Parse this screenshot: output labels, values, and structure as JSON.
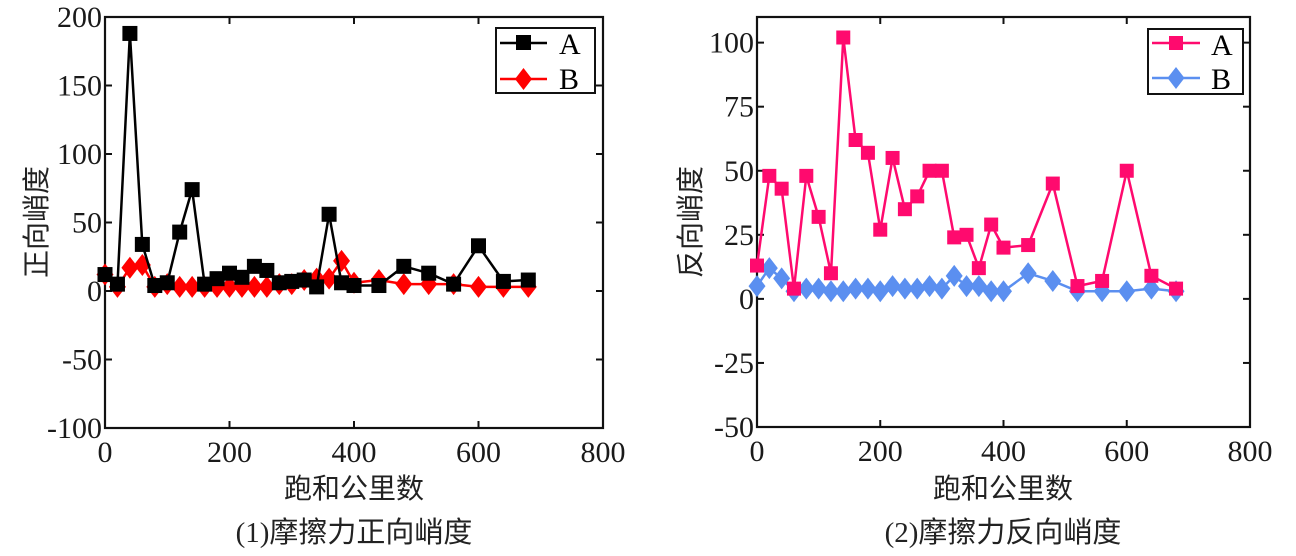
{
  "chart_data": [
    {
      "type": "line",
      "caption": "(1)摩擦力正向峭度",
      "xlabel": "跑和公里数",
      "ylabel": "正向峭度",
      "xlim": [
        0,
        800
      ],
      "ylim": [
        -100,
        200
      ],
      "xticks": [
        "0",
        "200",
        "400",
        "600",
        "800"
      ],
      "yticks": [
        "200",
        "150",
        "100",
        "50",
        "0",
        "-50",
        "-100"
      ],
      "legend_position": "top-right",
      "x": [
        0,
        20,
        40,
        60,
        80,
        100,
        120,
        140,
        160,
        180,
        200,
        220,
        240,
        260,
        280,
        300,
        320,
        340,
        360,
        380,
        400,
        440,
        480,
        520,
        560,
        600,
        640,
        680
      ],
      "series": [
        {
          "name": "A",
          "color": "#000000",
          "marker": "square",
          "values": [
            12,
            5,
            188,
            34,
            4,
            6,
            43,
            74,
            5,
            9,
            13,
            10,
            18,
            15,
            6,
            7,
            8,
            3,
            56,
            6,
            4,
            4,
            18,
            13,
            5,
            33,
            7,
            8
          ]
        },
        {
          "name": "B",
          "color": "#ff0000",
          "marker": "diamond",
          "values": [
            12,
            3,
            17,
            19,
            3,
            5,
            3,
            3,
            3,
            3,
            3,
            3,
            3,
            3,
            5,
            5,
            8,
            9,
            9,
            22,
            6,
            8,
            5,
            5,
            5,
            3,
            3,
            3
          ]
        }
      ]
    },
    {
      "type": "line",
      "caption": "(2)摩擦力反向峭度",
      "xlabel": "跑和公里数",
      "ylabel": "反向峭度",
      "xlim": [
        0,
        800
      ],
      "ylim": [
        -50,
        110
      ],
      "xticks": [
        "0",
        "200",
        "400",
        "600",
        "800"
      ],
      "yticks": [
        "100",
        "75",
        "50",
        "25",
        "0",
        "-25",
        "-50"
      ],
      "legend_position": "top-right",
      "x": [
        0,
        20,
        40,
        60,
        80,
        100,
        120,
        140,
        160,
        180,
        200,
        220,
        240,
        260,
        280,
        300,
        320,
        340,
        360,
        380,
        400,
        440,
        480,
        520,
        560,
        600,
        640,
        680
      ],
      "series": [
        {
          "name": "A",
          "color": "#ff0a6e",
          "marker": "square",
          "values": [
            13,
            48,
            43,
            4,
            48,
            32,
            10,
            102,
            62,
            57,
            27,
            55,
            35,
            40,
            50,
            50,
            24,
            25,
            12,
            29,
            20,
            21,
            45,
            5,
            7,
            50,
            9,
            4
          ]
        },
        {
          "name": "B",
          "color": "#5b8ff0",
          "marker": "diamond",
          "values": [
            5,
            12,
            8,
            3,
            4,
            4,
            3,
            3,
            4,
            4,
            3,
            5,
            4,
            4,
            5,
            4,
            9,
            5,
            5,
            3,
            3,
            10,
            7,
            3,
            3,
            3,
            4,
            3
          ]
        }
      ]
    }
  ]
}
